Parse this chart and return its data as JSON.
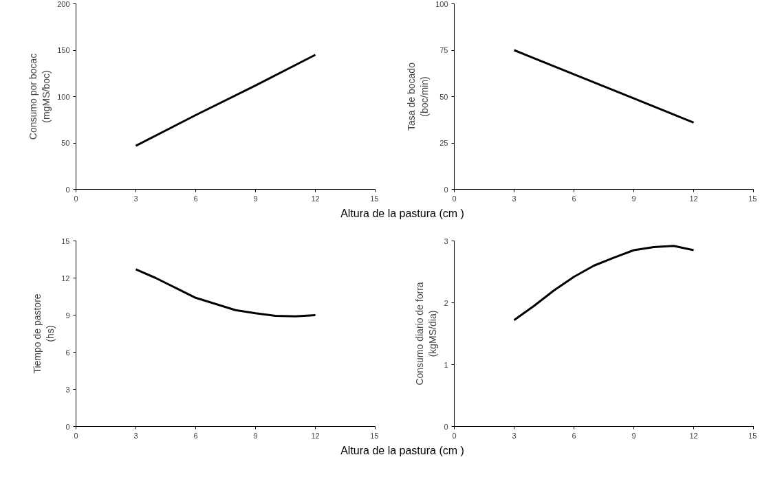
{
  "chart_data": [
    {
      "type": "line",
      "xlabel": "Altura de la pastura (cm )",
      "ylabel": "Consumo por bocac\n(mgMS/boc)",
      "x": [
        3,
        6,
        9,
        12
      ],
      "series": [
        {
          "color": "#000000",
          "values": [
            47,
            80,
            112,
            145
          ]
        }
      ],
      "xlim": [
        0,
        15
      ],
      "ylim": [
        0,
        200
      ],
      "xticks": [
        0,
        3,
        6,
        9,
        12,
        15
      ],
      "yticks": [
        0,
        50,
        100,
        150,
        200
      ],
      "grid": false
    },
    {
      "type": "line",
      "ylabel": "Tasa de bocado\n(boc/min)",
      "x": [
        3,
        6,
        9,
        12
      ],
      "series": [
        {
          "color": "#000000",
          "values": [
            75,
            62,
            49,
            36
          ]
        }
      ],
      "xlim": [
        0,
        15
      ],
      "ylim": [
        0,
        100
      ],
      "xticks": [
        0,
        3,
        6,
        9,
        12,
        15
      ],
      "yticks": [
        0,
        25,
        50,
        75,
        100
      ],
      "grid": false
    },
    {
      "type": "line",
      "xlabel": "Altura de la pastura (cm )",
      "ylabel": "Tiempo de pastore\n(hs)",
      "x": [
        3,
        4,
        5,
        6,
        7,
        8,
        9,
        10,
        11,
        12
      ],
      "series": [
        {
          "color": "#000000",
          "values": [
            12.7,
            12.0,
            11.2,
            10.4,
            9.9,
            9.4,
            9.15,
            8.95,
            8.9,
            9.0
          ]
        }
      ],
      "xlim": [
        0,
        15
      ],
      "ylim": [
        0,
        15
      ],
      "xticks": [
        0,
        3,
        6,
        9,
        12,
        15
      ],
      "yticks": [
        0,
        3,
        6,
        9,
        12,
        15
      ],
      "grid": false
    },
    {
      "type": "line",
      "ylabel": "Consumo diario de forra\n(kgMS/dia)",
      "x": [
        3,
        4,
        5,
        6,
        7,
        8,
        9,
        10,
        11,
        12
      ],
      "series": [
        {
          "color": "#000000",
          "values": [
            1.72,
            1.95,
            2.2,
            2.42,
            2.6,
            2.73,
            2.85,
            2.9,
            2.92,
            2.85
          ]
        }
      ],
      "xlim": [
        0,
        15
      ],
      "ylim": [
        0,
        3
      ],
      "xticks": [
        0,
        3,
        6,
        9,
        12,
        15
      ],
      "yticks": [
        0,
        1,
        2,
        3
      ],
      "grid": false
    }
  ]
}
